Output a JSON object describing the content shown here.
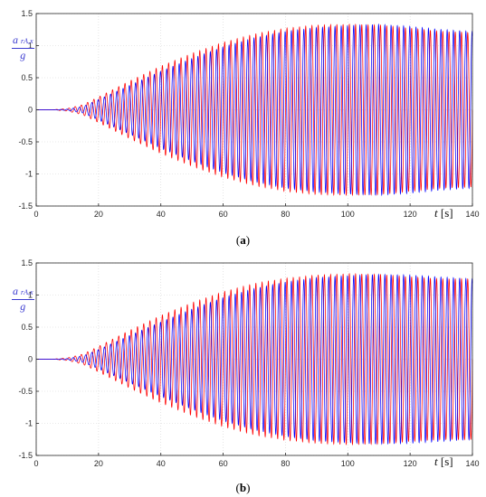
{
  "chart_data": [
    {
      "type": "line",
      "panel": "a",
      "caption_prefix": "(",
      "caption_letter": "a",
      "caption_suffix": ")",
      "ylabel_main": "a",
      "ylabel_sub": "rA,x",
      "ylabel_den": "g",
      "xlabel_var": "t",
      "xlabel_unit": "[s]",
      "xlim": [
        0,
        140
      ],
      "ylim": [
        -1.5,
        1.5
      ],
      "xticks": [
        "0",
        "20",
        "40",
        "60",
        "80",
        "100",
        "120",
        "140"
      ],
      "yticks": [
        "1.5",
        "1",
        "0.5",
        "0",
        "-0.5",
        "-1",
        "-1.5"
      ],
      "grid": true,
      "series": [
        {
          "color": "#ff0000",
          "envelope_t": [
            0,
            5,
            10,
            15,
            20,
            30,
            40,
            50,
            60,
            70,
            80,
            90,
            100,
            110,
            120,
            130,
            140
          ],
          "envelope_amp": [
            0.0,
            0.0,
            0.02,
            0.08,
            0.2,
            0.45,
            0.68,
            0.88,
            1.05,
            1.18,
            1.27,
            1.32,
            1.33,
            1.32,
            1.27,
            1.22,
            1.2
          ]
        },
        {
          "color": "#0000ff",
          "envelope_t": [
            0,
            5,
            10,
            15,
            20,
            30,
            40,
            50,
            60,
            70,
            80,
            90,
            100,
            110,
            120,
            130,
            140
          ],
          "envelope_amp": [
            0.0,
            0.0,
            0.01,
            0.05,
            0.16,
            0.38,
            0.6,
            0.8,
            0.98,
            1.12,
            1.22,
            1.28,
            1.31,
            1.33,
            1.3,
            1.25,
            1.22
          ]
        }
      ]
    },
    {
      "type": "line",
      "panel": "b",
      "caption_prefix": "(",
      "caption_letter": "b",
      "caption_suffix": ")",
      "ylabel_main": "a",
      "ylabel_sub": "rA,x",
      "ylabel_den": "g",
      "xlabel_var": "t",
      "xlabel_unit": "[s]",
      "xlim": [
        0,
        140
      ],
      "ylim": [
        -1.5,
        1.5
      ],
      "xticks": [
        "0",
        "20",
        "40",
        "60",
        "80",
        "100",
        "120",
        "140"
      ],
      "yticks": [
        "1.5",
        "1",
        "0.5",
        "0",
        "-0.5",
        "-1",
        "-1.5"
      ],
      "grid": true,
      "series": [
        {
          "color": "#ff0000",
          "envelope_t": [
            0,
            5,
            10,
            15,
            20,
            30,
            40,
            50,
            60,
            70,
            80,
            90,
            100,
            110,
            120,
            130,
            140
          ],
          "envelope_amp": [
            0.0,
            0.0,
            0.02,
            0.08,
            0.2,
            0.45,
            0.68,
            0.88,
            1.05,
            1.18,
            1.26,
            1.31,
            1.33,
            1.32,
            1.28,
            1.25,
            1.25
          ]
        },
        {
          "color": "#0000ff",
          "envelope_t": [
            0,
            5,
            10,
            15,
            20,
            30,
            40,
            50,
            60,
            70,
            80,
            90,
            100,
            110,
            120,
            130,
            140
          ],
          "envelope_amp": [
            0.0,
            0.0,
            0.01,
            0.05,
            0.15,
            0.37,
            0.58,
            0.78,
            0.96,
            1.1,
            1.2,
            1.27,
            1.3,
            1.32,
            1.31,
            1.28,
            1.25
          ]
        }
      ]
    }
  ]
}
